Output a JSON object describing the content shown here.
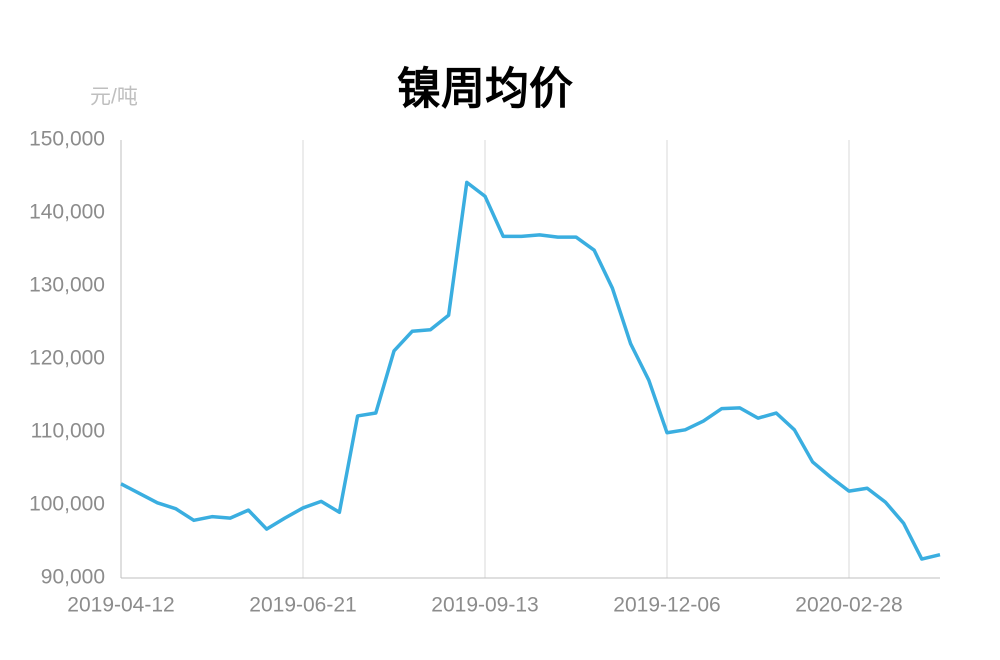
{
  "chart_data": {
    "type": "line",
    "title": "镍周均价",
    "y_unit": "元/吨",
    "categories": [
      "2019-04-12",
      null,
      null,
      null,
      null,
      null,
      null,
      null,
      null,
      null,
      "2019-06-21",
      null,
      null,
      null,
      null,
      null,
      null,
      null,
      null,
      null,
      "2019-09-13",
      null,
      null,
      null,
      null,
      null,
      null,
      null,
      null,
      null,
      "2019-12-06",
      null,
      null,
      null,
      null,
      null,
      null,
      null,
      null,
      null,
      "2020-02-28",
      null,
      null,
      null,
      null,
      null
    ],
    "series": [
      {
        "name": "镍周均价",
        "color": "#3aaee0",
        "values": [
          102900,
          101600,
          100300,
          99500,
          97900,
          98400,
          98200,
          99300,
          96700,
          98200,
          99600,
          100500,
          99000,
          112200,
          112600,
          121100,
          123800,
          124000,
          126000,
          144200,
          142300,
          136800,
          136800,
          137000,
          136700,
          136700,
          134900,
          129700,
          122100,
          117100,
          109900,
          110300,
          111500,
          113200,
          113300,
          111900,
          112600,
          110300,
          105900,
          103800,
          101900,
          102300,
          100400,
          97500,
          92600,
          93200
        ]
      }
    ],
    "ylim": [
      90000,
      150000
    ],
    "yticks": [
      {
        "value": 90000,
        "label": "90,000"
      },
      {
        "value": 100000,
        "label": "100,000"
      },
      {
        "value": 110000,
        "label": "110,000"
      },
      {
        "value": 120000,
        "label": "120,000"
      },
      {
        "value": 130000,
        "label": "130,000"
      },
      {
        "value": 140000,
        "label": "140,000"
      },
      {
        "value": 150000,
        "label": "150,000"
      }
    ],
    "grid": true
  }
}
